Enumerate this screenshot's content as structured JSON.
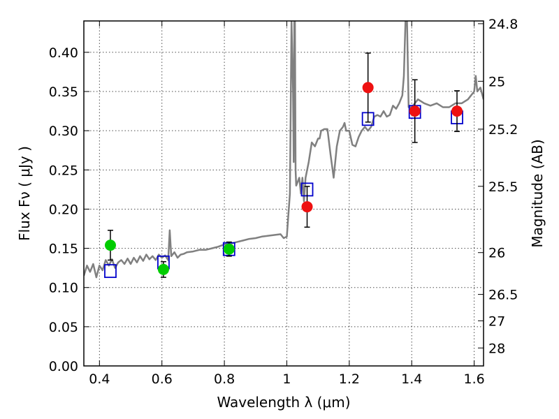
{
  "chart_data": {
    "type": "scatter",
    "title": "",
    "xlabel": "Wavelength  λ (μm)",
    "ylabel": "Flux  Fν  ( μJy )",
    "ylabel_right": "Magnitude (AB)",
    "xlim": [
      0.35,
      1.63
    ],
    "ylim": [
      0.0,
      0.44
    ],
    "grid": true,
    "legend": "none",
    "x_ticks": [
      {
        "value": 0.4,
        "label": "0.4"
      },
      {
        "value": 0.6,
        "label": "0.6"
      },
      {
        "value": 0.8,
        "label": "0.8"
      },
      {
        "value": 1.0,
        "label": "1"
      },
      {
        "value": 1.2,
        "label": "1.2"
      },
      {
        "value": 1.4,
        "label": "1.4"
      },
      {
        "value": 1.6,
        "label": "1.6"
      }
    ],
    "y_ticks": [
      {
        "value": 0.0,
        "label": "0.00"
      },
      {
        "value": 0.05,
        "label": "0.05"
      },
      {
        "value": 0.1,
        "label": "0.10"
      },
      {
        "value": 0.15,
        "label": "0.15"
      },
      {
        "value": 0.2,
        "label": "0.20"
      },
      {
        "value": 0.25,
        "label": "0.25"
      },
      {
        "value": 0.3,
        "label": "0.30"
      },
      {
        "value": 0.35,
        "label": "0.35"
      },
      {
        "value": 0.4,
        "label": "0.40"
      }
    ],
    "right_ticks": [
      {
        "value": 24.8,
        "label": "24.8"
      },
      {
        "value": 25,
        "label": "25"
      },
      {
        "value": 25.2,
        "label": "25.2"
      },
      {
        "value": 25.5,
        "label": "25.5"
      },
      {
        "value": 26,
        "label": "26"
      },
      {
        "value": 26.5,
        "label": "26.5"
      },
      {
        "value": 27,
        "label": "27"
      },
      {
        "value": 28,
        "label": "28"
      }
    ],
    "series": [
      {
        "kind": "line",
        "color": "#808080",
        "x": [
          0.35,
          0.36,
          0.37,
          0.38,
          0.39,
          0.4,
          0.41,
          0.42,
          0.43,
          0.44,
          0.45,
          0.46,
          0.47,
          0.48,
          0.49,
          0.5,
          0.51,
          0.52,
          0.53,
          0.54,
          0.55,
          0.56,
          0.57,
          0.58,
          0.59,
          0.6,
          0.61,
          0.62,
          0.625,
          0.63,
          0.64,
          0.65,
          0.66,
          0.67,
          0.68,
          0.7,
          0.72,
          0.74,
          0.76,
          0.78,
          0.8,
          0.82,
          0.84,
          0.86,
          0.88,
          0.9,
          0.92,
          0.94,
          0.96,
          0.98,
          0.99,
          1.0,
          1.01,
          1.015,
          1.02,
          1.022,
          1.024,
          1.026,
          1.028,
          1.03,
          1.035,
          1.04,
          1.045,
          1.05,
          1.055,
          1.06,
          1.07,
          1.08,
          1.09,
          1.1,
          1.105,
          1.11,
          1.12,
          1.13,
          1.14,
          1.15,
          1.16,
          1.17,
          1.18,
          1.185,
          1.19,
          1.2,
          1.21,
          1.22,
          1.23,
          1.24,
          1.25,
          1.26,
          1.27,
          1.28,
          1.29,
          1.3,
          1.31,
          1.32,
          1.33,
          1.34,
          1.35,
          1.36,
          1.37,
          1.375,
          1.38,
          1.385,
          1.39,
          1.4,
          1.42,
          1.44,
          1.46,
          1.48,
          1.5,
          1.52,
          1.54,
          1.56,
          1.58,
          1.59,
          1.6,
          1.605,
          1.61,
          1.62,
          1.63
        ],
        "y": [
          0.115,
          0.128,
          0.12,
          0.13,
          0.113,
          0.128,
          0.122,
          0.135,
          0.128,
          0.136,
          0.125,
          0.132,
          0.135,
          0.13,
          0.137,
          0.13,
          0.138,
          0.132,
          0.14,
          0.134,
          0.142,
          0.136,
          0.14,
          0.135,
          0.142,
          0.138,
          0.141,
          0.135,
          0.173,
          0.14,
          0.145,
          0.138,
          0.142,
          0.143,
          0.145,
          0.146,
          0.148,
          0.148,
          0.15,
          0.152,
          0.155,
          0.156,
          0.158,
          0.16,
          0.162,
          0.163,
          0.165,
          0.166,
          0.167,
          0.168,
          0.163,
          0.165,
          0.22,
          0.44,
          0.35,
          0.26,
          0.44,
          0.44,
          0.25,
          0.23,
          0.235,
          0.24,
          0.22,
          0.24,
          0.21,
          0.24,
          0.26,
          0.285,
          0.28,
          0.29,
          0.29,
          0.3,
          0.302,
          0.302,
          0.27,
          0.24,
          0.28,
          0.3,
          0.305,
          0.31,
          0.3,
          0.3,
          0.282,
          0.28,
          0.292,
          0.3,
          0.305,
          0.3,
          0.305,
          0.318,
          0.32,
          0.318,
          0.325,
          0.318,
          0.32,
          0.332,
          0.328,
          0.335,
          0.345,
          0.37,
          0.44,
          0.44,
          0.33,
          0.33,
          0.34,
          0.335,
          0.332,
          0.335,
          0.33,
          0.33,
          0.335,
          0.335,
          0.34,
          0.345,
          0.35,
          0.37,
          0.35,
          0.355,
          0.34
        ]
      },
      {
        "kind": "model-box",
        "color": "#0000cc",
        "x": [
          0.435,
          0.605,
          0.815,
          1.065,
          1.26,
          1.41,
          1.545
        ],
        "y": [
          0.121,
          0.132,
          0.149,
          0.225,
          0.315,
          0.324,
          0.317
        ]
      },
      {
        "kind": "point",
        "color": "#00cc00",
        "x": [
          0.435,
          0.605,
          0.815
        ],
        "y": [
          0.154,
          0.123,
          0.149
        ],
        "err": [
          0.019,
          0.01,
          0.009
        ]
      },
      {
        "kind": "point",
        "color": "#ee1111",
        "x": [
          1.065,
          1.26,
          1.41,
          1.545
        ],
        "y": [
          0.203,
          0.355,
          0.325,
          0.325
        ],
        "err": [
          0.026,
          0.044,
          0.04,
          0.026
        ]
      }
    ]
  }
}
